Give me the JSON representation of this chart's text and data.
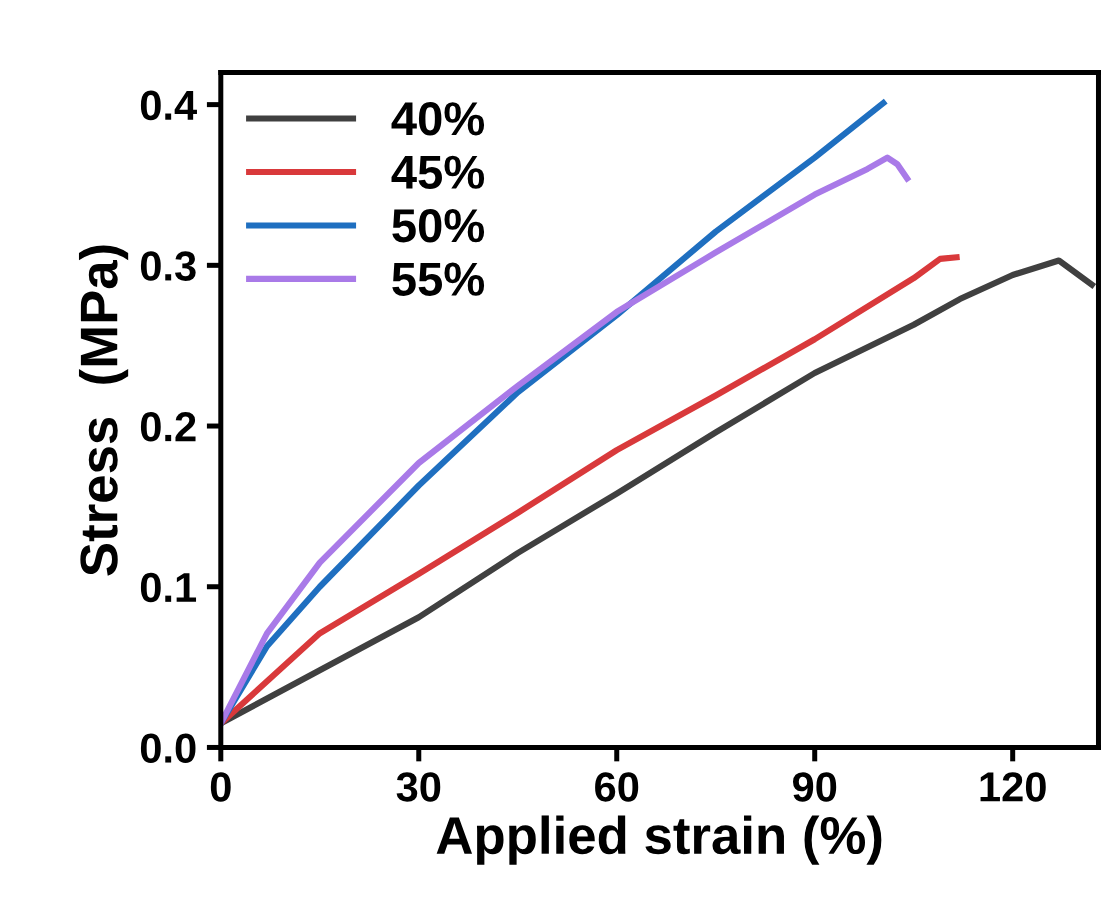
{
  "chart_data": {
    "type": "line",
    "xlabel": "Applied strain (%)",
    "ylabel": "Stress  (MPa)",
    "xlim": [
      0,
      133
    ],
    "ylim": [
      0,
      0.42
    ],
    "xticks": [
      0,
      30,
      60,
      90,
      120
    ],
    "yticks": [
      {
        "value": 0,
        "label": "0.0"
      },
      {
        "value": 0.1,
        "label": "0.1"
      },
      {
        "value": 0.2,
        "label": "0.2"
      },
      {
        "value": 0.3,
        "label": "0.3"
      },
      {
        "value": 0.4,
        "label": "0.4"
      }
    ],
    "legend": "top left",
    "grid": false,
    "series": [
      {
        "name": "40%",
        "color": "#404040",
        "x": [
          0,
          15,
          30,
          45,
          60,
          75,
          90,
          105,
          112,
          120,
          127,
          132
        ],
        "values": [
          0.015,
          0.048,
          0.081,
          0.121,
          0.158,
          0.196,
          0.233,
          0.263,
          0.279,
          0.294,
          0.303,
          0.288
        ]
      },
      {
        "name": "45%",
        "color": "#d9393b",
        "x": [
          0,
          15,
          30,
          45,
          60,
          75,
          90,
          105,
          109,
          111.5
        ],
        "values": [
          0.015,
          0.071,
          0.108,
          0.146,
          0.185,
          0.219,
          0.254,
          0.292,
          0.304,
          0.305
        ]
      },
      {
        "name": "50%",
        "color": "#1f6fc0",
        "x": [
          0,
          7,
          15,
          30,
          45,
          60,
          75,
          90,
          100.4
        ],
        "values": [
          0.015,
          0.063,
          0.1,
          0.163,
          0.221,
          0.269,
          0.321,
          0.367,
          0.401
        ]
      },
      {
        "name": "55%",
        "color": "#a97ae8",
        "x": [
          0,
          7,
          15,
          30,
          45,
          60,
          75,
          90,
          98,
          101,
          102.5,
          104
        ],
        "values": [
          0.015,
          0.071,
          0.115,
          0.177,
          0.225,
          0.271,
          0.308,
          0.344,
          0.36,
          0.367,
          0.363,
          0.354
        ]
      }
    ]
  }
}
